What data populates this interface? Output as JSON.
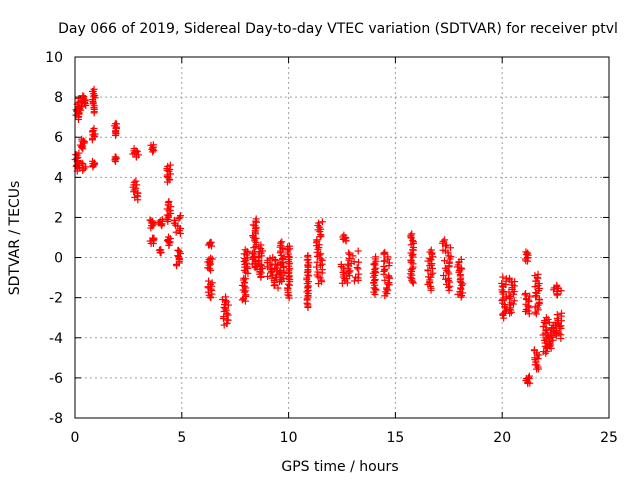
{
  "chart_data": {
    "type": "scatter",
    "title": "Day 066 of 2019, Sidereal Day-to-day VTEC variation (SDTVAR) for receiver ptvl",
    "xlabel": "GPS time / hours",
    "ylabel": "SDTVAR / TECUs",
    "xlim": [
      0,
      25
    ],
    "ylim": [
      -8,
      10
    ],
    "xticks": [
      0,
      5,
      10,
      15,
      20,
      25
    ],
    "yticks": [
      -8,
      -6,
      -4,
      -2,
      0,
      2,
      4,
      6,
      8,
      10
    ],
    "grid": true,
    "marker": "+",
    "marker_color": "#ff0000",
    "series": [
      {
        "name": "SDTVAR",
        "clusters": [
          {
            "x": [
              0.0,
              0.25
            ],
            "y": [
              6.9,
              7.4
            ]
          },
          {
            "x": [
              0.05,
              0.35
            ],
            "y": [
              7.3,
              7.9
            ]
          },
          {
            "x": [
              0.3,
              0.55
            ],
            "y": [
              7.6,
              8.1
            ]
          },
          {
            "x": [
              0.0,
              0.2
            ],
            "y": [
              4.5,
              5.2
            ]
          },
          {
            "x": [
              0.1,
              0.5
            ],
            "y": [
              4.3,
              4.8
            ]
          },
          {
            "x": [
              0.25,
              0.5
            ],
            "y": [
              5.4,
              5.9
            ]
          },
          {
            "x": [
              0.8,
              0.95
            ],
            "y": [
              7.2,
              8.4
            ]
          },
          {
            "x": [
              0.8,
              0.95
            ],
            "y": [
              5.9,
              6.4
            ]
          },
          {
            "x": [
              0.8,
              0.95
            ],
            "y": [
              4.5,
              4.8
            ]
          },
          {
            "x": [
              1.85,
              1.95
            ],
            "y": [
              6.1,
              6.7
            ]
          },
          {
            "x": [
              1.85,
              1.95
            ],
            "y": [
              4.8,
              5.0
            ]
          },
          {
            "x": [
              2.7,
              3.0
            ],
            "y": [
              5.0,
              5.4
            ]
          },
          {
            "x": [
              2.7,
              3.0
            ],
            "y": [
              2.9,
              3.8
            ]
          },
          {
            "x": [
              3.55,
              3.7
            ],
            "y": [
              5.3,
              5.6
            ]
          },
          {
            "x": [
              3.5,
              3.7
            ],
            "y": [
              1.5,
              1.9
            ]
          },
          {
            "x": [
              3.5,
              3.7
            ],
            "y": [
              0.7,
              1.0
            ]
          },
          {
            "x": [
              3.9,
              4.1
            ],
            "y": [
              1.6,
              1.9
            ]
          },
          {
            "x": [
              3.95,
              4.05
            ],
            "y": [
              0.2,
              0.4
            ]
          },
          {
            "x": [
              4.3,
              4.5
            ],
            "y": [
              3.8,
              4.6
            ]
          },
          {
            "x": [
              4.3,
              4.5
            ],
            "y": [
              1.8,
              2.8
            ]
          },
          {
            "x": [
              4.3,
              4.5
            ],
            "y": [
              0.6,
              1.0
            ]
          },
          {
            "x": [
              4.6,
              4.95
            ],
            "y": [
              1.2,
              2.1
            ]
          },
          {
            "x": [
              4.7,
              4.95
            ],
            "y": [
              -0.4,
              0.4
            ]
          },
          {
            "x": [
              6.25,
              6.4
            ],
            "y": [
              0.6,
              0.8
            ]
          },
          {
            "x": [
              6.2,
              6.45
            ],
            "y": [
              -0.6,
              0.0
            ]
          },
          {
            "x": [
              6.2,
              6.45
            ],
            "y": [
              -2.0,
              -1.2
            ]
          },
          {
            "x": [
              6.9,
              7.2
            ],
            "y": [
              -3.4,
              -2.0
            ]
          },
          {
            "x": [
              7.8,
              8.0
            ],
            "y": [
              -2.2,
              -1.0
            ]
          },
          {
            "x": [
              7.9,
              8.1
            ],
            "y": [
              -0.8,
              0.4
            ]
          },
          {
            "x": [
              8.3,
              8.5
            ],
            "y": [
              0.5,
              1.9
            ]
          },
          {
            "x": [
              8.3,
              8.55
            ],
            "y": [
              -0.6,
              0.3
            ]
          },
          {
            "x": [
              8.6,
              8.8
            ],
            "y": [
              -1.0,
              0.6
            ]
          },
          {
            "x": [
              9.0,
              9.3
            ],
            "y": [
              -1.0,
              0.0
            ]
          },
          {
            "x": [
              9.3,
              9.6
            ],
            "y": [
              -1.5,
              -0.1
            ]
          },
          {
            "x": [
              9.6,
              9.8
            ],
            "y": [
              -1.2,
              0.8
            ]
          },
          {
            "x": [
              9.95,
              10.05
            ],
            "y": [
              -2.0,
              0.6
            ]
          },
          {
            "x": [
              10.85,
              10.95
            ],
            "y": [
              -2.5,
              0.1
            ]
          },
          {
            "x": [
              11.3,
              11.6
            ],
            "y": [
              -1.3,
              1.8
            ]
          },
          {
            "x": [
              12.5,
              12.7
            ],
            "y": [
              0.8,
              1.1
            ]
          },
          {
            "x": [
              12.4,
              12.8
            ],
            "y": [
              -1.3,
              -0.3
            ]
          },
          {
            "x": [
              12.8,
              13.3
            ],
            "y": [
              -1.2,
              0.3
            ]
          },
          {
            "x": [
              13.95,
              14.1
            ],
            "y": [
              -1.8,
              0.0
            ]
          },
          {
            "x": [
              14.45,
              14.75
            ],
            "y": [
              -1.9,
              0.3
            ]
          },
          {
            "x": [
              15.7,
              15.85
            ],
            "y": [
              -1.3,
              1.2
            ]
          },
          {
            "x": [
              16.5,
              16.75
            ],
            "y": [
              -1.6,
              0.4
            ]
          },
          {
            "x": [
              17.2,
              17.6
            ],
            "y": [
              -1.6,
              0.9
            ]
          },
          {
            "x": [
              17.9,
              18.15
            ],
            "y": [
              -2.0,
              -0.1
            ]
          },
          {
            "x": [
              19.95,
              20.2
            ],
            "y": [
              -3.0,
              -1.0
            ]
          },
          {
            "x": [
              20.3,
              20.6
            ],
            "y": [
              -2.8,
              -1.0
            ]
          },
          {
            "x": [
              21.05,
              21.25
            ],
            "y": [
              -0.2,
              0.3
            ]
          },
          {
            "x": [
              21.05,
              21.3
            ],
            "y": [
              -2.8,
              -1.8
            ]
          },
          {
            "x": [
              21.1,
              21.3
            ],
            "y": [
              -6.3,
              -5.9
            ]
          },
          {
            "x": [
              21.5,
              21.75
            ],
            "y": [
              -5.6,
              -4.6
            ]
          },
          {
            "x": [
              21.5,
              21.75
            ],
            "y": [
              -2.8,
              -0.8
            ]
          },
          {
            "x": [
              21.9,
              22.2
            ],
            "y": [
              -4.8,
              -3.0
            ]
          },
          {
            "x": [
              22.2,
              22.5
            ],
            "y": [
              -4.5,
              -3.2
            ]
          },
          {
            "x": [
              22.3,
              22.8
            ],
            "y": [
              -1.9,
              -1.4
            ]
          },
          {
            "x": [
              22.5,
              22.8
            ],
            "y": [
              -4.0,
              -2.8
            ]
          }
        ]
      }
    ]
  }
}
